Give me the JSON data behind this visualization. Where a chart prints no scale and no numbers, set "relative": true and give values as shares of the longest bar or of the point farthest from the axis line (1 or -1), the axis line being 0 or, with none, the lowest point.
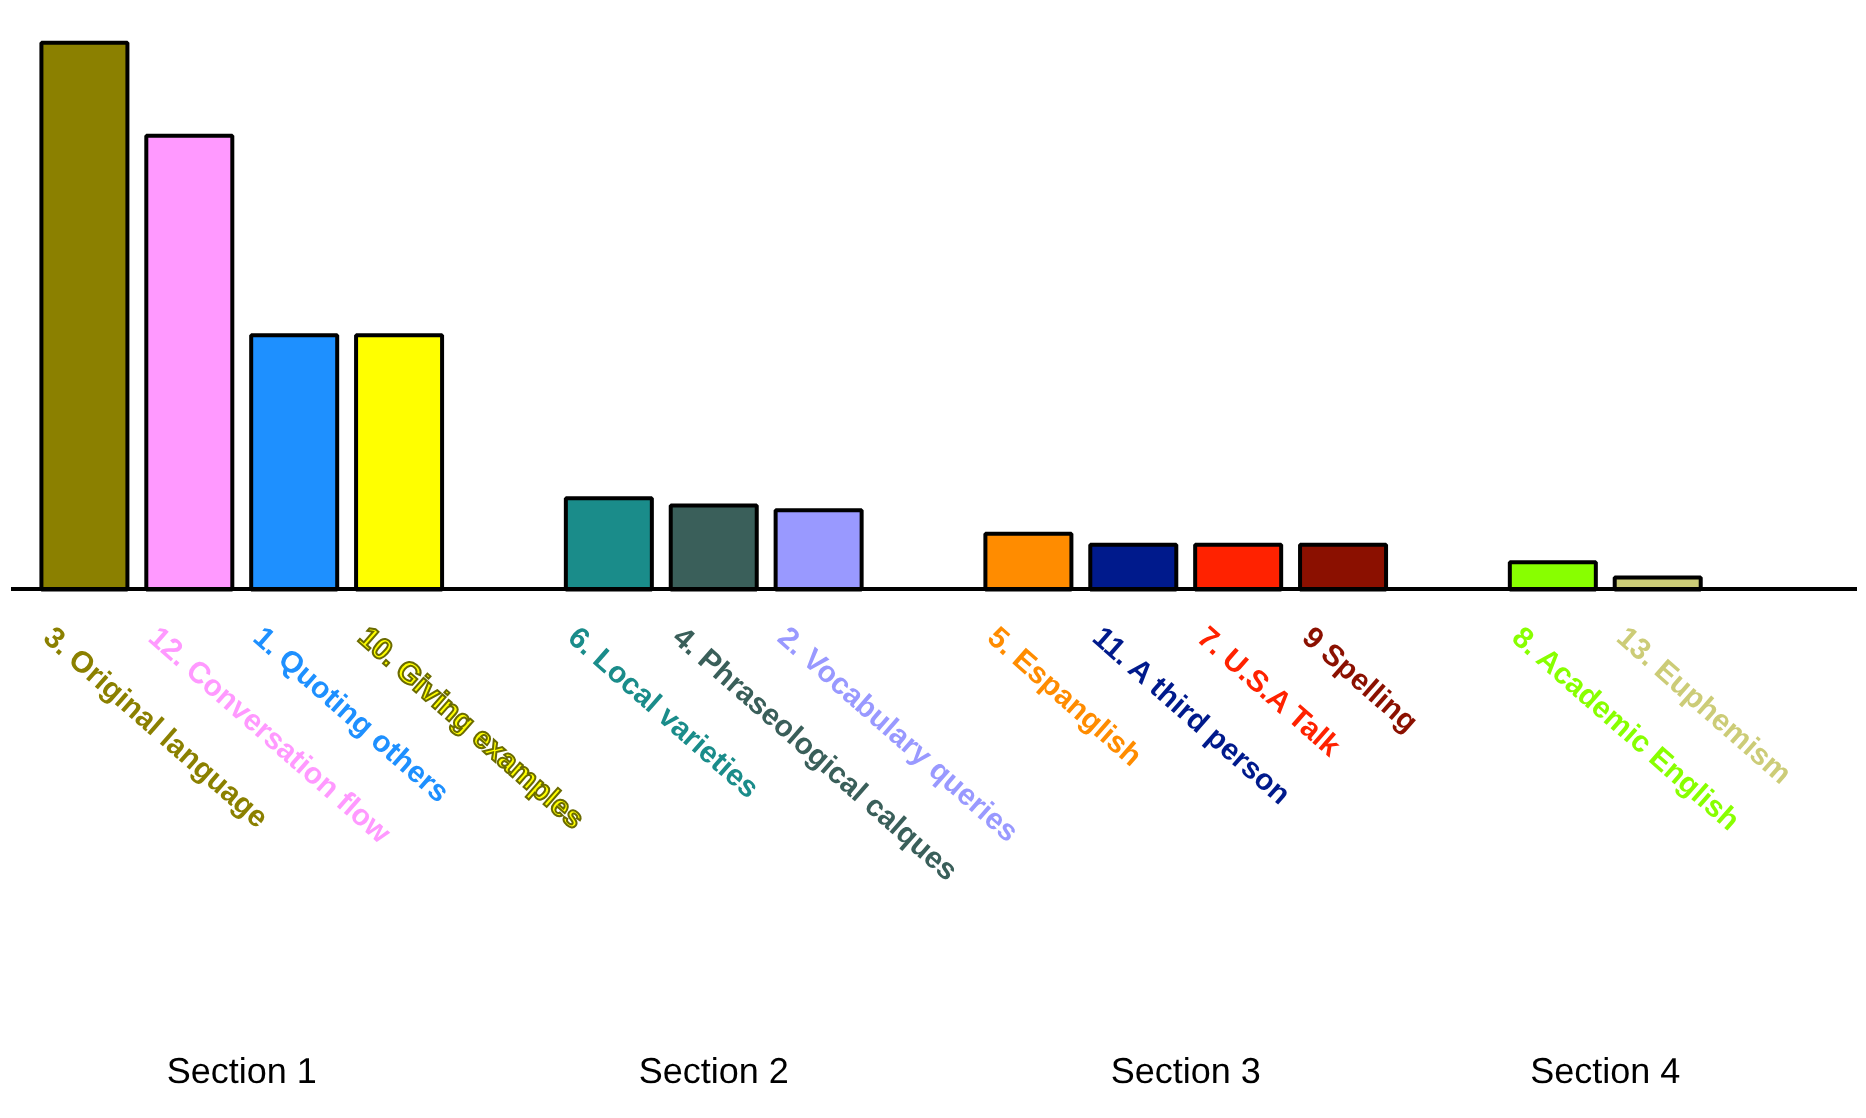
{
  "chart_data": {
    "type": "bar",
    "relative": true,
    "categories": [
      "3. Original language",
      "12. Conversation flow",
      "1. Quoting others",
      "10. Giving examples",
      null,
      "6. Local varieties",
      "4. Phraseological calques",
      "2. Vocabulary queries",
      null,
      "5. Espanglish",
      "11. A third person",
      "7. U.S.A Talk",
      "9 Spelling",
      null,
      "8. Academic English",
      "13. Euphemism"
    ],
    "values": [
      1,
      0.83,
      0.465,
      0.465,
      null,
      0.167,
      0.154,
      0.145,
      null,
      0.102,
      0.082,
      0.082,
      0.082,
      null,
      0.05,
      0.022
    ],
    "colors": [
      "#8b8000",
      "#ff99ff",
      "#1e90ff",
      "#ffff00",
      null,
      "#1a8c8a",
      "#3a5f5a",
      "#9999ff",
      null,
      "#ff8c00",
      "#001a8c",
      "#ff2200",
      "#8b1000",
      null,
      "#88ff00",
      "#cccc77"
    ],
    "annotations": [
      "Section 1",
      "Section 2",
      "Section 3",
      "Section 4"
    ]
  }
}
